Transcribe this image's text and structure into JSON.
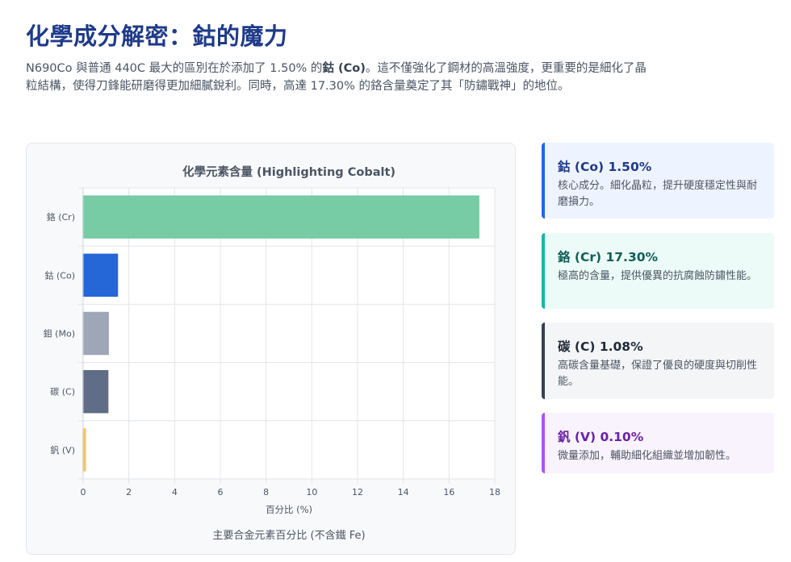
{
  "title": "化學成分解密：鈷的魔力",
  "intro": {
    "part1": "N690Co 與普通 440C 最大的區別在於添加了 1.50% 的",
    "bold": "鈷 (Co)",
    "part2": "。這不僅強化了鋼材的高溫強度，更重要的是細化了晶粒結構，使得刀鋒能研磨得更加細膩銳利。同時，高達 17.30% 的鉻含量奠定了其「防鏽戰神」的地位。"
  },
  "chart_data": {
    "type": "bar",
    "orientation": "horizontal",
    "title": "化學元素含量 (Highlighting Cobalt)",
    "categories": [
      "鉻 (Cr)",
      "鈷 (Co)",
      "鉬 (Mo)",
      "碳 (C)",
      "釩 (V)"
    ],
    "values": [
      17.3,
      1.5,
      1.1,
      1.08,
      0.1
    ],
    "colors": [
      "#70c9a0",
      "#1a5fd6",
      "#98a2b3",
      "#566580",
      "#f4c15a"
    ],
    "xlim": [
      0,
      18
    ],
    "xticks": [
      0,
      2,
      4,
      6,
      8,
      10,
      12,
      14,
      16,
      18
    ],
    "xlabel": "百分比 (%)",
    "footer": "主要合金元素百分比 (不含鐵 Fe)",
    "grid": true
  },
  "cards": [
    {
      "title": "鈷 (Co) 1.50%",
      "desc": "核心成分。細化晶粒，提升硬度穩定性與耐磨損力。",
      "title_color": "#1e3a8a",
      "border_color": "#2563eb",
      "bg": "#eef4ff"
    },
    {
      "title": "鉻 (Cr) 17.30%",
      "desc": "極高的含量，提供優異的抗腐蝕防鏽性能。",
      "title_color": "#115e59",
      "border_color": "#14b8a6",
      "bg": "#ecfbf7"
    },
    {
      "title": "碳 (C) 1.08%",
      "desc": "高碳含量基礎，保證了優良的硬度與切削性能。",
      "title_color": "#1f2937",
      "border_color": "#374151",
      "bg": "#f4f5f7"
    },
    {
      "title": "釩 (V) 0.10%",
      "desc": "微量添加，輔助細化組織並增加韌性。",
      "title_color": "#6b21a8",
      "border_color": "#a855f7",
      "bg": "#f9f3fe"
    }
  ]
}
